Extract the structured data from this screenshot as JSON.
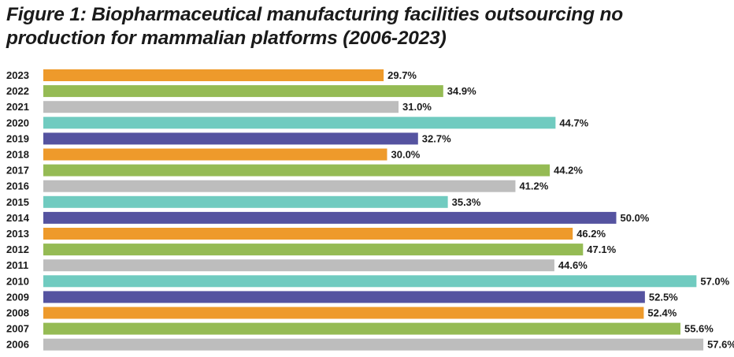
{
  "chart_data": {
    "type": "bar",
    "orientation": "horizontal",
    "title": "Figure 1: Biopharmaceutical manufacturing facilities outsourcing no production for mammalian platforms (2006-2023)",
    "xlabel": "",
    "ylabel": "",
    "xlim": [
      0,
      60
    ],
    "categories": [
      "2023",
      "2022",
      "2021",
      "2020",
      "2019",
      "2018",
      "2017",
      "2016",
      "2015",
      "2014",
      "2013",
      "2012",
      "2011",
      "2010",
      "2009",
      "2008",
      "2007",
      "2006"
    ],
    "values": [
      29.7,
      34.9,
      31.0,
      44.7,
      32.7,
      30.0,
      44.2,
      41.2,
      35.3,
      50.0,
      46.2,
      47.1,
      44.6,
      57.0,
      52.5,
      52.4,
      55.6,
      57.6
    ],
    "value_labels": [
      "29.7%",
      "34.9%",
      "31.0%",
      "44.7%",
      "32.7%",
      "30.0%",
      "44.2%",
      "41.2%",
      "35.3%",
      "50.0%",
      "46.2%",
      "47.1%",
      "44.6%",
      "57.0%",
      "52.5%",
      "52.4%",
      "55.6%",
      "57.6%"
    ],
    "bar_colors": [
      "#ee9a2b",
      "#95bb54",
      "#bdbdbd",
      "#70cbc0",
      "#5553a0",
      "#ee9a2b",
      "#95bb54",
      "#bdbdbd",
      "#70cbc0",
      "#5553a0",
      "#ee9a2b",
      "#95bb54",
      "#bdbdbd",
      "#70cbc0",
      "#5553a0",
      "#ee9a2b",
      "#95bb54",
      "#bdbdbd"
    ],
    "grid": false,
    "legend": "none"
  }
}
